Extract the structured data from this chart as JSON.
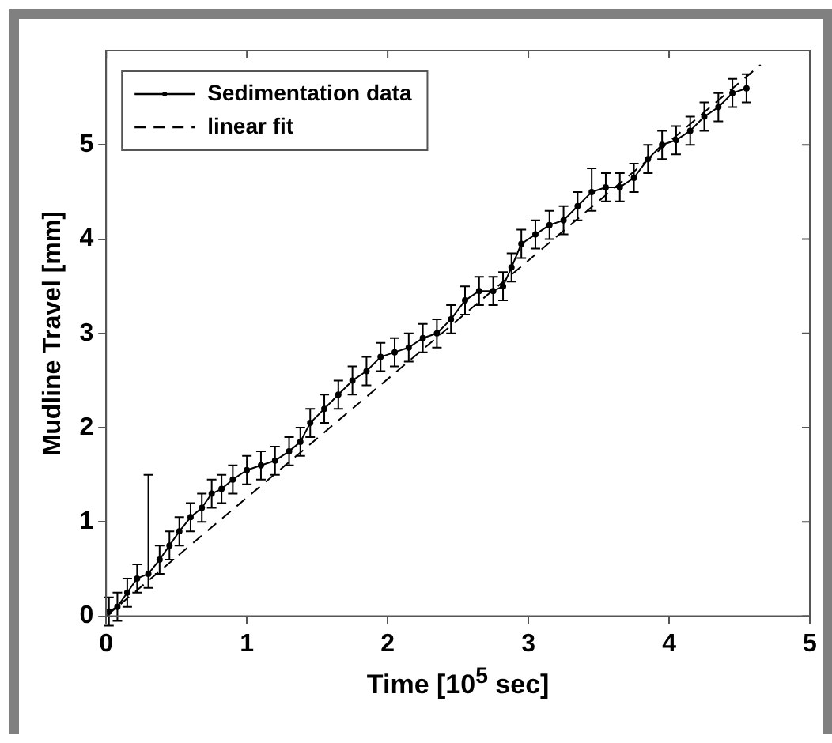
{
  "chart_data": {
    "type": "line",
    "xlabel": "Time [10$^{5}$ sec]",
    "ylabel": "Mudline Travel [mm]",
    "xlim": [
      0,
      5
    ],
    "xticks": [
      0,
      1,
      2,
      3,
      4,
      5
    ],
    "ylim": [
      0,
      6
    ],
    "yticks": [
      0,
      1,
      2,
      3,
      4,
      5
    ],
    "grid": false,
    "legend": "top left",
    "series": [
      {
        "name": "Sedimentation data",
        "color": "#000000",
        "marker": "circle",
        "line_style": "solid",
        "x": [
          0.02,
          0.08,
          0.15,
          0.22,
          0.3,
          0.38,
          0.45,
          0.52,
          0.6,
          0.68,
          0.75,
          0.82,
          0.9,
          1.0,
          1.1,
          1.2,
          1.3,
          1.38,
          1.45,
          1.55,
          1.65,
          1.75,
          1.85,
          1.95,
          2.05,
          2.15,
          2.25,
          2.35,
          2.45,
          2.55,
          2.65,
          2.75,
          2.82,
          2.88,
          2.95,
          3.05,
          3.15,
          3.25,
          3.35,
          3.45,
          3.55,
          3.65,
          3.75,
          3.85,
          3.95,
          4.05,
          4.15,
          4.25,
          4.35,
          4.45,
          4.55
        ],
        "values": [
          0.05,
          0.1,
          0.25,
          0.4,
          0.45,
          0.6,
          0.75,
          0.9,
          1.05,
          1.15,
          1.3,
          1.35,
          1.45,
          1.55,
          1.6,
          1.65,
          1.75,
          1.85,
          2.05,
          2.2,
          2.35,
          2.5,
          2.6,
          2.75,
          2.8,
          2.85,
          2.95,
          3.0,
          3.15,
          3.35,
          3.45,
          3.45,
          3.5,
          3.7,
          3.95,
          4.05,
          4.15,
          4.2,
          4.35,
          4.5,
          4.55,
          4.55,
          4.65,
          4.85,
          5.0,
          5.05,
          5.15,
          5.3,
          5.4,
          5.55,
          5.6
        ],
        "errors": [
          0.15,
          0.15,
          0.15,
          0.15,
          [
            0.3,
            1.5
          ],
          0.15,
          0.15,
          0.15,
          0.15,
          0.15,
          0.15,
          0.15,
          0.15,
          0.15,
          0.15,
          0.15,
          0.15,
          0.15,
          0.15,
          0.15,
          0.15,
          0.15,
          0.15,
          0.15,
          0.15,
          0.15,
          0.15,
          0.15,
          0.15,
          0.15,
          0.15,
          0.15,
          0.15,
          0.15,
          0.15,
          0.15,
          0.15,
          0.15,
          0.15,
          [
            4.3,
            4.75
          ],
          0.15,
          0.15,
          0.15,
          0.15,
          0.15,
          0.15,
          0.15,
          0.15,
          0.15,
          0.15,
          0.15
        ]
      },
      {
        "name": "linear fit",
        "color": "#000000",
        "marker": "none",
        "line_style": "dashed",
        "x": [
          0,
          4.65
        ],
        "values": [
          0,
          5.85
        ]
      }
    ]
  }
}
